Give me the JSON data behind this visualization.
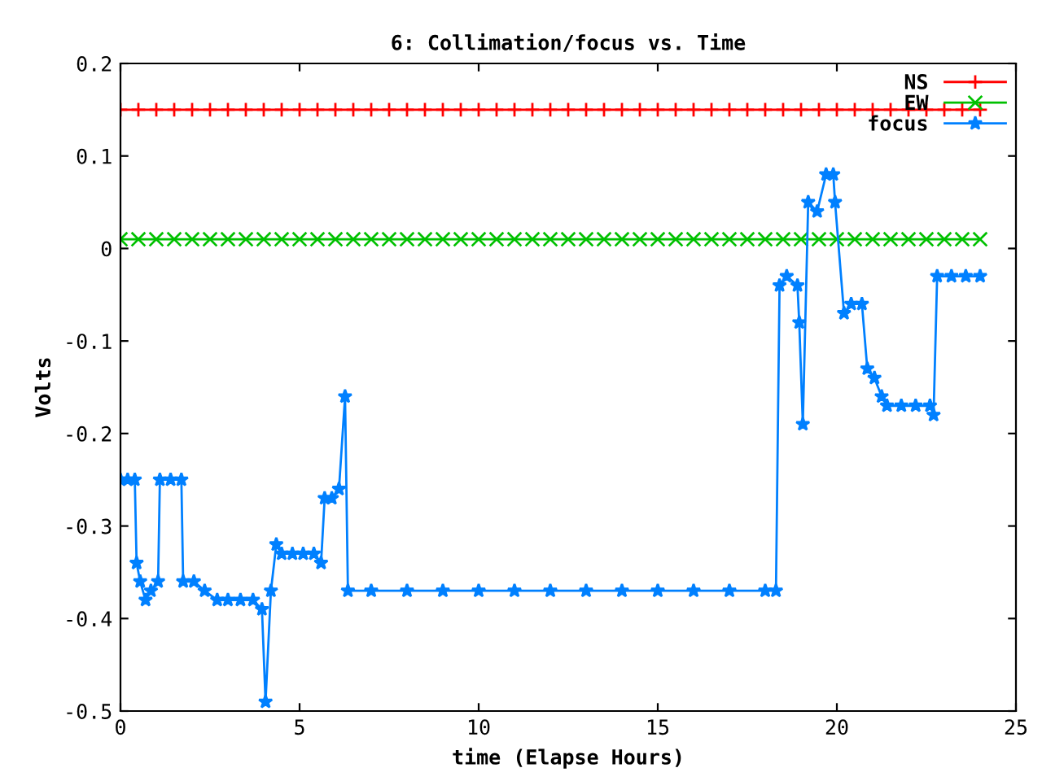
{
  "chart_data": {
    "type": "line",
    "title": "6: Collimation/focus vs. Time",
    "xlabel": "time (Elapse Hours)",
    "ylabel": "Volts",
    "xlim": [
      0,
      25
    ],
    "xticks": [
      0,
      5,
      10,
      15,
      20,
      25
    ],
    "ylim": [
      -0.5,
      0.2
    ],
    "yticks": [
      -0.5,
      -0.4,
      -0.3,
      -0.2,
      -0.1,
      0,
      0.1,
      0.2
    ],
    "grid": false,
    "legend": "top right",
    "line_style": "solid",
    "series": [
      {
        "name": "NS",
        "color": "#ff0000",
        "marker": "plus",
        "x": [
          0,
          0.5,
          1,
          1.5,
          2,
          2.5,
          3,
          3.5,
          4,
          4.5,
          5,
          5.5,
          6,
          6.5,
          7,
          7.5,
          8,
          8.5,
          9,
          9.5,
          10,
          10.5,
          11,
          11.5,
          12,
          12.5,
          13,
          13.5,
          14,
          14.5,
          15,
          15.5,
          16,
          16.5,
          17,
          17.5,
          18,
          18.5,
          19,
          19.5,
          20,
          20.5,
          21,
          21.5,
          22,
          22.5,
          23,
          23.5,
          24
        ],
        "values": [
          0.15,
          0.15,
          0.15,
          0.15,
          0.15,
          0.15,
          0.15,
          0.15,
          0.15,
          0.15,
          0.15,
          0.15,
          0.15,
          0.15,
          0.15,
          0.15,
          0.15,
          0.15,
          0.15,
          0.15,
          0.15,
          0.15,
          0.15,
          0.15,
          0.15,
          0.15,
          0.15,
          0.15,
          0.15,
          0.15,
          0.15,
          0.15,
          0.15,
          0.15,
          0.15,
          0.15,
          0.15,
          0.15,
          0.15,
          0.15,
          0.15,
          0.15,
          0.15,
          0.15,
          0.15,
          0.15,
          0.15,
          0.15,
          0.15
        ]
      },
      {
        "name": "EW",
        "color": "#00c000",
        "marker": "cross",
        "x": [
          0,
          0.5,
          1,
          1.5,
          2,
          2.5,
          3,
          3.5,
          4,
          4.5,
          5,
          5.5,
          6,
          6.5,
          7,
          7.5,
          8,
          8.5,
          9,
          9.5,
          10,
          10.5,
          11,
          11.5,
          12,
          12.5,
          13,
          13.5,
          14,
          14.5,
          15,
          15.5,
          16,
          16.5,
          17,
          17.5,
          18,
          18.5,
          19,
          19.5,
          20,
          20.5,
          21,
          21.5,
          22,
          22.5,
          23,
          23.5,
          24
        ],
        "values": [
          0.01,
          0.01,
          0.01,
          0.01,
          0.01,
          0.01,
          0.01,
          0.01,
          0.01,
          0.01,
          0.01,
          0.01,
          0.01,
          0.01,
          0.01,
          0.01,
          0.01,
          0.01,
          0.01,
          0.01,
          0.01,
          0.01,
          0.01,
          0.01,
          0.01,
          0.01,
          0.01,
          0.01,
          0.01,
          0.01,
          0.01,
          0.01,
          0.01,
          0.01,
          0.01,
          0.01,
          0.01,
          0.01,
          0.01,
          0.01,
          0.01,
          0.01,
          0.01,
          0.01,
          0.01,
          0.01,
          0.01,
          0.01,
          0.01
        ]
      },
      {
        "name": "focus",
        "color": "#0080ff",
        "marker": "star",
        "x": [
          0,
          0.2,
          0.4,
          0.45,
          0.55,
          0.7,
          0.85,
          1.05,
          1.1,
          1.4,
          1.7,
          1.75,
          2.05,
          2.35,
          2.7,
          3.0,
          3.35,
          3.7,
          3.95,
          4.05,
          4.2,
          4.35,
          4.5,
          4.8,
          5.1,
          5.4,
          5.6,
          5.7,
          5.9,
          6.1,
          6.27,
          6.35,
          7,
          8,
          9,
          10,
          11,
          12,
          13,
          14,
          15,
          16,
          17,
          18,
          18.3,
          18.4,
          18.6,
          18.9,
          18.95,
          19.05,
          19.2,
          19.45,
          19.7,
          19.9,
          19.95,
          20.2,
          20.4,
          20.7,
          20.85,
          21.05,
          21.25,
          21.4,
          21.8,
          22.2,
          22.6,
          22.7,
          22.8,
          23.2,
          23.6,
          24.0
        ],
        "values": [
          -0.25,
          -0.25,
          -0.25,
          -0.34,
          -0.36,
          -0.38,
          -0.37,
          -0.36,
          -0.25,
          -0.25,
          -0.25,
          -0.36,
          -0.36,
          -0.37,
          -0.38,
          -0.38,
          -0.38,
          -0.38,
          -0.39,
          -0.49,
          -0.37,
          -0.32,
          -0.33,
          -0.33,
          -0.33,
          -0.33,
          -0.34,
          -0.27,
          -0.27,
          -0.26,
          -0.16,
          -0.37,
          -0.37,
          -0.37,
          -0.37,
          -0.37,
          -0.37,
          -0.37,
          -0.37,
          -0.37,
          -0.37,
          -0.37,
          -0.37,
          -0.37,
          -0.37,
          -0.04,
          -0.03,
          -0.04,
          -0.08,
          -0.19,
          0.05,
          0.04,
          0.08,
          0.08,
          0.05,
          -0.07,
          -0.06,
          -0.06,
          -0.13,
          -0.14,
          -0.16,
          -0.17,
          -0.17,
          -0.17,
          -0.17,
          -0.18,
          -0.03,
          -0.03,
          -0.03,
          -0.03
        ]
      }
    ]
  }
}
